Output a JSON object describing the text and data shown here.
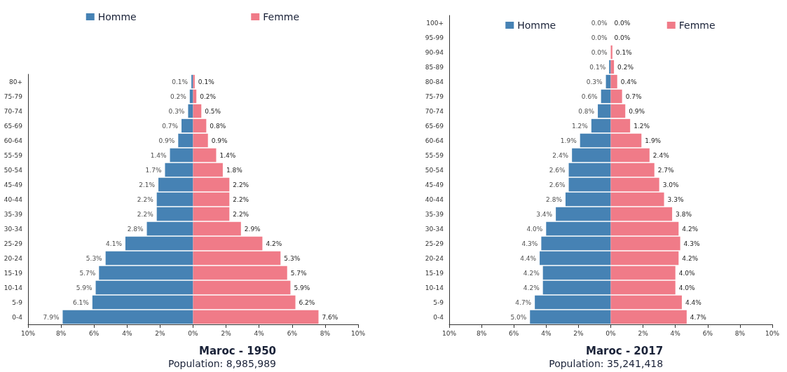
{
  "chart_data": [
    {
      "type": "bar",
      "orientation": "horizontal",
      "stacked": true,
      "title": "Maroc - 1950",
      "subtitle": "Population: 8,985,989",
      "legend": "top",
      "categories": [
        "80+",
        "75-79",
        "70-74",
        "65-69",
        "60-64",
        "55-59",
        "50-54",
        "45-49",
        "40-44",
        "35-39",
        "30-34",
        "25-29",
        "20-24",
        "15-19",
        "10-14",
        "5-9",
        "0-4"
      ],
      "series": [
        {
          "name": "Homme",
          "color": "#4682b4",
          "values": [
            -0.1,
            -0.2,
            -0.3,
            -0.7,
            -0.9,
            -1.4,
            -1.7,
            -2.1,
            -2.2,
            -2.2,
            -2.8,
            -4.1,
            -5.3,
            -5.7,
            -5.9,
            -6.1,
            -7.9
          ]
        },
        {
          "name": "Femme",
          "color": "#f07b88",
          "values": [
            0.1,
            0.2,
            0.5,
            0.8,
            0.9,
            1.4,
            1.8,
            2.2,
            2.2,
            2.2,
            2.9,
            4.2,
            5.3,
            5.7,
            5.9,
            6.2,
            7.6
          ],
          "value_labels": [
            "0.1%",
            "0.2%",
            "0.5%",
            "0.8%",
            "0.9%",
            "1.4%",
            "1.8%",
            "2.2%",
            "2.2%",
            "2.2%",
            "2.9%",
            "4.2%",
            "5.3%",
            "5.7%",
            "5.9%",
            "6.2%",
            "7.6%"
          ]
        }
      ],
      "annotations": [
        {
          "text": "0.1%",
          "x": -0.1,
          "y": "80+"
        },
        {
          "text": "0.2%",
          "x": -0.2,
          "y": "75-79"
        },
        {
          "text": "0.3%",
          "x": -0.3,
          "y": "70-74"
        },
        {
          "text": "0.7%",
          "x": -0.7,
          "y": "65-69"
        },
        {
          "text": "0.9%",
          "x": -0.9,
          "y": "60-64"
        },
        {
          "text": "1.4%",
          "x": -1.4,
          "y": "55-59"
        },
        {
          "text": "1.7%",
          "x": -1.7,
          "y": "50-54"
        },
        {
          "text": "2.1%",
          "x": -2.1,
          "y": "45-49"
        },
        {
          "text": "2.2%",
          "x": -2.2,
          "y": "40-44"
        },
        {
          "text": "2.2%",
          "x": -2.2,
          "y": "35-39"
        },
        {
          "text": "2.8%",
          "x": -2.8,
          "y": "30-34"
        },
        {
          "text": "4.1%",
          "x": -4.1,
          "y": "25-29"
        },
        {
          "text": "5.3%",
          "x": -5.3,
          "y": "20-24"
        },
        {
          "text": "5.7%",
          "x": -5.7,
          "y": "15-19"
        },
        {
          "text": "5.9%",
          "x": -5.9,
          "y": "10-14"
        },
        {
          "text": "6.1%",
          "x": -6.1,
          "y": "5-9"
        },
        {
          "text": "7.9%",
          "x": -7.9,
          "y": "0-4"
        }
      ],
      "xlim": [
        -10,
        10
      ],
      "xticks": [
        {
          "value": -10,
          "label": "10%"
        },
        {
          "value": -8,
          "label": "8%"
        },
        {
          "value": -6,
          "label": "6%"
        },
        {
          "value": -4,
          "label": "4%"
        },
        {
          "value": -2,
          "label": "2%"
        },
        {
          "value": 0,
          "label": "0%"
        },
        {
          "value": 2,
          "label": "2%"
        },
        {
          "value": 4,
          "label": "4%"
        },
        {
          "value": 6,
          "label": "6%"
        },
        {
          "value": 8,
          "label": "8%"
        },
        {
          "value": 10,
          "label": "10%"
        }
      ]
    },
    {
      "type": "bar",
      "orientation": "horizontal",
      "stacked": true,
      "title": "Maroc - 2017",
      "subtitle": "Population: 35,241,418",
      "legend": "top",
      "categories": [
        "100+",
        "95-99",
        "90-94",
        "85-89",
        "80-84",
        "75-79",
        "70-74",
        "65-69",
        "60-64",
        "55-59",
        "50-54",
        "45-49",
        "40-44",
        "35-39",
        "30-34",
        "25-29",
        "20-24",
        "15-19",
        "10-14",
        "5-9",
        "0-4"
      ],
      "series": [
        {
          "name": "Homme",
          "color": "#4682b4",
          "values": [
            0,
            0,
            0,
            -0.1,
            -0.3,
            -0.6,
            -0.8,
            -1.2,
            -1.9,
            -2.4,
            -2.6,
            -2.6,
            -2.8,
            -3.4,
            -4.0,
            -4.3,
            -4.4,
            -4.2,
            -4.2,
            -4.7,
            -5.0
          ]
        },
        {
          "name": "Femme",
          "color": "#f07b88",
          "values": [
            0,
            0,
            0.1,
            0.2,
            0.4,
            0.7,
            0.9,
            1.2,
            1.9,
            2.4,
            2.7,
            3.0,
            3.3,
            3.8,
            4.2,
            4.3,
            4.2,
            4.0,
            4.0,
            4.4,
            4.7
          ],
          "value_labels": [
            "0.0%",
            "0.0%",
            "0.1%",
            "0.2%",
            "0.4%",
            "0.7%",
            "0.9%",
            "1.2%",
            "1.9%",
            "2.4%",
            "2.7%",
            "3.0%",
            "3.3%",
            "3.8%",
            "4.2%",
            "4.3%",
            "4.2%",
            "4.0%",
            "4.0%",
            "4.4%",
            "4.7%"
          ]
        }
      ],
      "annotations": [
        {
          "text": "0.0%",
          "x": 0,
          "y": "100+"
        },
        {
          "text": "0.0%",
          "x": 0,
          "y": "95-99"
        },
        {
          "text": "0.0%",
          "x": 0,
          "y": "90-94"
        },
        {
          "text": "0.1%",
          "x": -0.1,
          "y": "85-89"
        },
        {
          "text": "0.3%",
          "x": -0.3,
          "y": "80-84"
        },
        {
          "text": "0.6%",
          "x": -0.6,
          "y": "75-79"
        },
        {
          "text": "0.8%",
          "x": -0.8,
          "y": "70-74"
        },
        {
          "text": "1.2%",
          "x": -1.2,
          "y": "65-69"
        },
        {
          "text": "1.9%",
          "x": -1.9,
          "y": "60-64"
        },
        {
          "text": "2.4%",
          "x": -2.4,
          "y": "55-59"
        },
        {
          "text": "2.6%",
          "x": -2.6,
          "y": "50-54"
        },
        {
          "text": "2.6%",
          "x": -2.6,
          "y": "45-49"
        },
        {
          "text": "2.8%",
          "x": -2.8,
          "y": "40-44"
        },
        {
          "text": "3.4%",
          "x": -3.4,
          "y": "35-39"
        },
        {
          "text": "4.0%",
          "x": -4.0,
          "y": "30-34"
        },
        {
          "text": "4.3%",
          "x": -4.3,
          "y": "25-29"
        },
        {
          "text": "4.4%",
          "x": -4.4,
          "y": "20-24"
        },
        {
          "text": "4.2%",
          "x": -4.2,
          "y": "15-19"
        },
        {
          "text": "4.2%",
          "x": -4.2,
          "y": "10-14"
        },
        {
          "text": "4.7%",
          "x": -4.7,
          "y": "5-9"
        },
        {
          "text": "5.0%",
          "x": -5.0,
          "y": "0-4"
        }
      ],
      "xlim": [
        -10,
        10
      ],
      "xticks": [
        {
          "value": -10,
          "label": "10%"
        },
        {
          "value": -8,
          "label": "8%"
        },
        {
          "value": -6,
          "label": "6%"
        },
        {
          "value": -4,
          "label": "4%"
        },
        {
          "value": -2,
          "label": "2%"
        },
        {
          "value": 0,
          "label": "0%"
        },
        {
          "value": 2,
          "label": "2%"
        },
        {
          "value": 4,
          "label": "4%"
        },
        {
          "value": 6,
          "label": "6%"
        },
        {
          "value": 8,
          "label": "8%"
        },
        {
          "value": 10,
          "label": "10%"
        }
      ]
    }
  ]
}
